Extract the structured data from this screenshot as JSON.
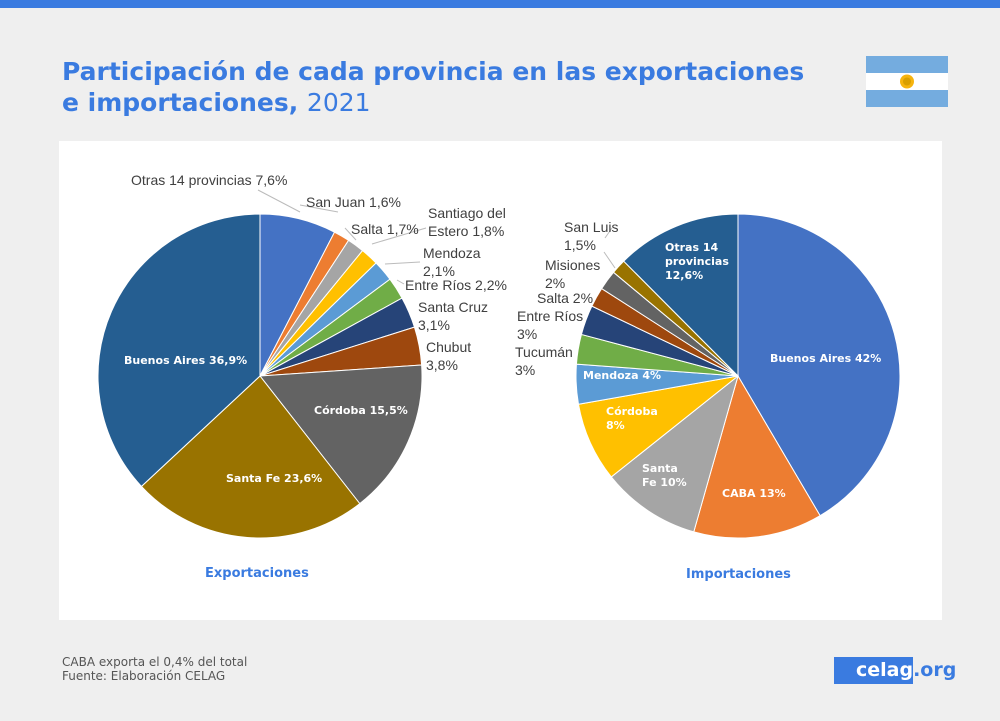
{
  "title": {
    "main": "Participación de cada provincia en las exportaciones e importaciones,",
    "year": "2021"
  },
  "footer": {
    "note": "CABA exporta el 0,4% del total",
    "source": "Fuente: Elaboración CELAG"
  },
  "logo": {
    "main": "celag",
    "suffix": ".org"
  },
  "chart_data": [
    {
      "type": "pie",
      "subtitle": "Exportaciones",
      "unit": "%",
      "slices": [
        {
          "name": "Otras 14 provincias",
          "value": 7.6,
          "label": "Otras 14 provincias 7,6%",
          "color": "#4472c4"
        },
        {
          "name": "San Juan",
          "value": 1.6,
          "label": "San Juan 1,6%",
          "color": "#ed7d31"
        },
        {
          "name": "Salta",
          "value": 1.7,
          "label": "Salta 1,7%",
          "color": "#a5a5a5"
        },
        {
          "name": "Santiago del Estero",
          "value": 1.8,
          "label": "Santiago del Estero 1,8%",
          "color": "#ffc000"
        },
        {
          "name": "Mendoza",
          "value": 2.1,
          "label": "Mendoza 2,1%",
          "color": "#5b9bd5"
        },
        {
          "name": "Entre Ríos",
          "value": 2.2,
          "label": "Entre Ríos 2,2%",
          "color": "#70ad47"
        },
        {
          "name": "Santa Cruz",
          "value": 3.1,
          "label": "Santa Cruz 3,1%",
          "color": "#264478"
        },
        {
          "name": "Chubut",
          "value": 3.8,
          "label": "Chubut 3,8%",
          "color": "#9e480e"
        },
        {
          "name": "Córdoba",
          "value": 15.5,
          "label": "Córdoba 15,5%",
          "color": "#636363"
        },
        {
          "name": "Santa Fe",
          "value": 23.6,
          "label": "Santa Fe 23,6%",
          "color": "#997300"
        },
        {
          "name": "Buenos Aires",
          "value": 36.9,
          "label": "Buenos Aires 36,9%",
          "color": "#255e91"
        }
      ]
    },
    {
      "type": "pie",
      "subtitle": "Importaciones",
      "unit": "%",
      "slices": [
        {
          "name": "Buenos Aires",
          "value": 42,
          "label": "Buenos Aires 42%",
          "color": "#4472c4"
        },
        {
          "name": "CABA",
          "value": 13,
          "label": "CABA 13%",
          "color": "#ed7d31"
        },
        {
          "name": "Santa Fe",
          "value": 10,
          "label": "Santa Fe 10%",
          "color": "#a5a5a5"
        },
        {
          "name": "Córdoba",
          "value": 8,
          "label": "Córdoba 8%",
          "color": "#ffc000"
        },
        {
          "name": "Mendoza",
          "value": 4,
          "label": "Mendoza 4%",
          "color": "#5b9bd5"
        },
        {
          "name": "Tucumán",
          "value": 3,
          "label": "Tucumán 3%",
          "color": "#70ad47"
        },
        {
          "name": "Entre Ríos",
          "value": 3,
          "label": "Entre Ríos 3%",
          "color": "#264478"
        },
        {
          "name": "Salta",
          "value": 2,
          "label": "Salta 2%",
          "color": "#9e480e"
        },
        {
          "name": "Misiones",
          "value": 2,
          "label": "Misiones 2%",
          "color": "#636363"
        },
        {
          "name": "San Luis",
          "value": 1.5,
          "label": "San Luis 1,5%",
          "color": "#997300"
        },
        {
          "name": "Otras 14 provincias",
          "value": 12.6,
          "label": "Otras 14 provincias 12,6%",
          "color": "#255e91"
        }
      ]
    }
  ]
}
